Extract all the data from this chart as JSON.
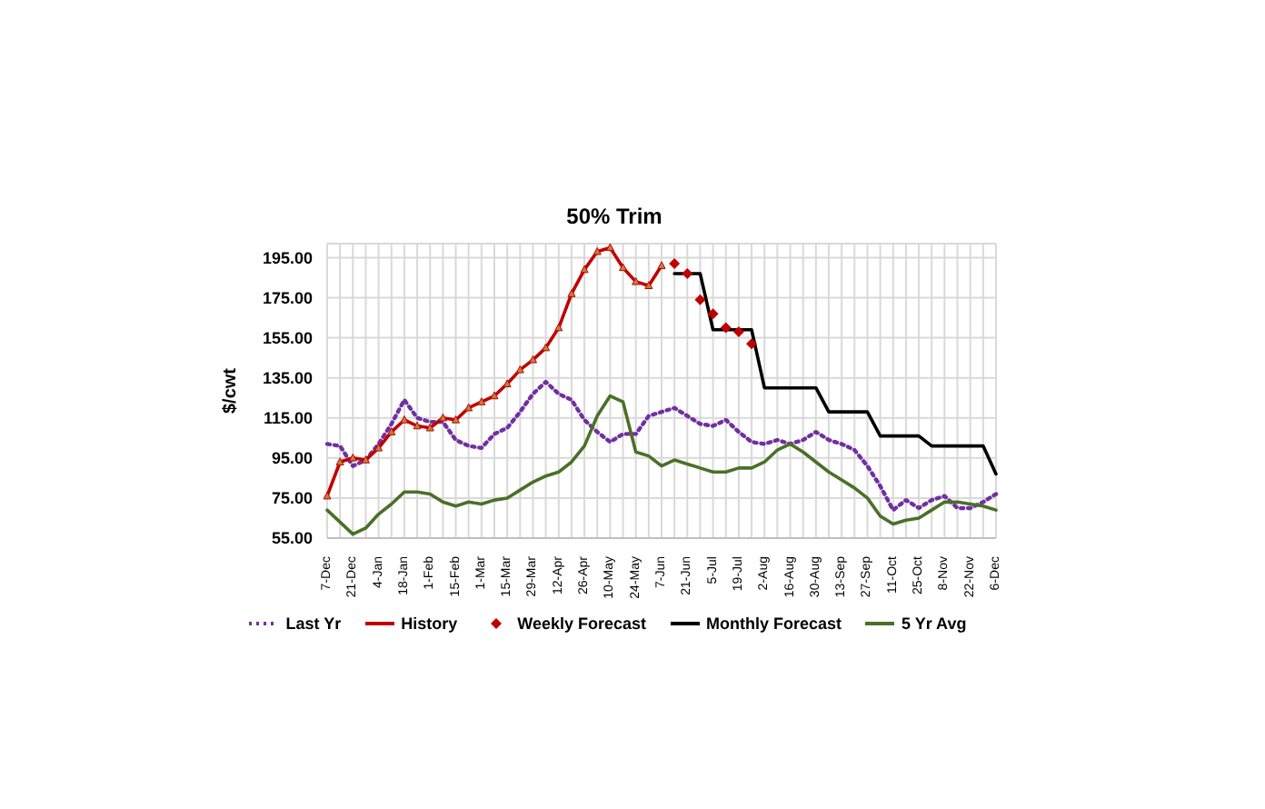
{
  "chart_data": {
    "type": "line",
    "title": "50% Trim",
    "ylabel": "$/cwt",
    "categories": [
      "7-Dec",
      null,
      "21-Dec",
      null,
      "4-Jan",
      null,
      "18-Jan",
      null,
      "1-Feb",
      null,
      "15-Feb",
      null,
      "1-Mar",
      null,
      "15-Mar",
      null,
      "29-Mar",
      null,
      "12-Apr",
      null,
      "26-Apr",
      null,
      "10-May",
      null,
      "24-May",
      null,
      "7-Jun",
      null,
      "21-Jun",
      null,
      "5-Jul",
      null,
      "19-Jul",
      null,
      "2-Aug",
      null,
      "16-Aug",
      null,
      "30-Aug",
      null,
      "13-Sep",
      null,
      "27-Sep",
      null,
      "11-Oct",
      null,
      "25-Oct",
      null,
      "8-Nov",
      null,
      "22-Nov",
      null,
      "6-Dec"
    ],
    "series": [
      {
        "name": "Last Yr",
        "type": "line",
        "color": "#7030a0",
        "line_style": "dotted",
        "marker": "none",
        "values": [
          102,
          101,
          91,
          94,
          102,
          112,
          124,
          115,
          113,
          113,
          104,
          101,
          100,
          107,
          110,
          118,
          127,
          133,
          127,
          124,
          114,
          108,
          103,
          107,
          107,
          116,
          118,
          120,
          116,
          112,
          111,
          114,
          108,
          103,
          102,
          104,
          102,
          104,
          108,
          104,
          102,
          99,
          91,
          81,
          69,
          74,
          70,
          74,
          76,
          70,
          70,
          73,
          77
        ]
      },
      {
        "name": "History",
        "type": "line",
        "color": "#c00000",
        "line_style": "solid",
        "marker": "triangle",
        "values": [
          76,
          93,
          95,
          94,
          100,
          108,
          114,
          111,
          110,
          115,
          114,
          120,
          123,
          126,
          132,
          139,
          144,
          150,
          160,
          177,
          189,
          198,
          200,
          190,
          183,
          181,
          191,
          null,
          null,
          null,
          null,
          null,
          null,
          null,
          null,
          null,
          null,
          null,
          null,
          null,
          null,
          null,
          null,
          null,
          null,
          null,
          null,
          null,
          null,
          null,
          null,
          null,
          null
        ]
      },
      {
        "name": "Weekly Forecast",
        "type": "scatter",
        "color": "#c00000",
        "marker": "diamond",
        "values": [
          null,
          null,
          null,
          null,
          null,
          null,
          null,
          null,
          null,
          null,
          null,
          null,
          null,
          null,
          null,
          null,
          null,
          null,
          null,
          null,
          null,
          null,
          null,
          null,
          null,
          null,
          null,
          192,
          187,
          174,
          167,
          160,
          158,
          152,
          null,
          null,
          null,
          null,
          null,
          null,
          null,
          null,
          null,
          null,
          null,
          null,
          null,
          null,
          null,
          null,
          null,
          null,
          null
        ]
      },
      {
        "name": "Monthly Forecast",
        "type": "line",
        "color": "#000000",
        "line_style": "solid",
        "marker": "none",
        "values": [
          null,
          null,
          null,
          null,
          null,
          null,
          null,
          null,
          null,
          null,
          null,
          null,
          null,
          null,
          null,
          null,
          null,
          null,
          null,
          null,
          null,
          null,
          null,
          null,
          null,
          null,
          null,
          187,
          187,
          187,
          159,
          159,
          159,
          159,
          130,
          130,
          130,
          130,
          130,
          118,
          118,
          118,
          118,
          106,
          106,
          106,
          106,
          101,
          101,
          101,
          101,
          101,
          87
        ]
      },
      {
        "name": "5 Yr Avg",
        "type": "line",
        "color": "#4a7028",
        "line_style": "solid",
        "marker": "none",
        "values": [
          69,
          63,
          57,
          60,
          67,
          72,
          78,
          78,
          77,
          73,
          71,
          73,
          72,
          74,
          75,
          79,
          83,
          86,
          88,
          93,
          101,
          116,
          126,
          123,
          98,
          96,
          91,
          94,
          92,
          90,
          88,
          88,
          90,
          90,
          93,
          99,
          102,
          98,
          93,
          88,
          84,
          80,
          75,
          66,
          62,
          64,
          65,
          69,
          73,
          73,
          72,
          71,
          69
        ]
      }
    ],
    "ylim": [
      55,
      202
    ],
    "yticks": [
      {
        "value": 55,
        "label": "55.00"
      },
      {
        "value": 75,
        "label": "75.00"
      },
      {
        "value": 95,
        "label": "95.00"
      },
      {
        "value": 115,
        "label": "115.00"
      },
      {
        "value": 135,
        "label": "135.00"
      },
      {
        "value": 155,
        "label": "155.00"
      },
      {
        "value": 175,
        "label": "175.00"
      },
      {
        "value": 195,
        "label": "195.00"
      }
    ],
    "grid": true,
    "legend": "bottom"
  }
}
